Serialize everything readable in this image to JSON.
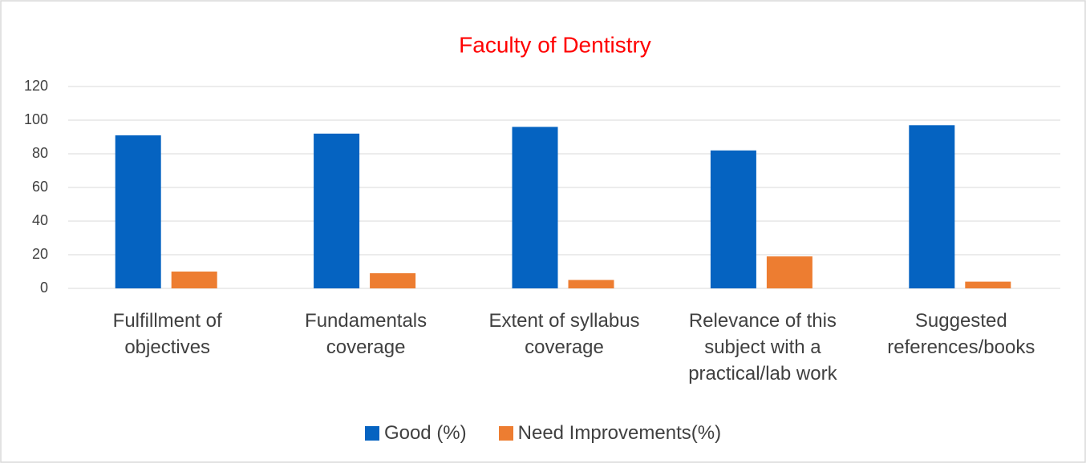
{
  "chart_data": {
    "type": "bar",
    "title": "Faculty of Dentistry",
    "categories": [
      "Fulfillment of objectives",
      "Fundamentals coverage",
      "Extent of syllabus coverage",
      "Relevance of this subject with a practical/lab work",
      "Suggested references/books"
    ],
    "series": [
      {
        "name": "Good (%)",
        "color": "#0563c1",
        "values": [
          91,
          92,
          96,
          82,
          97
        ]
      },
      {
        "name": "Need Improvements(%)",
        "color": "#ed7d31",
        "values": [
          10,
          9,
          5,
          19,
          4
        ]
      }
    ],
    "ylim": [
      0,
      120
    ],
    "yticks": [
      0,
      20,
      40,
      60,
      80,
      100,
      120
    ],
    "grid": true,
    "legend": "bottom"
  }
}
